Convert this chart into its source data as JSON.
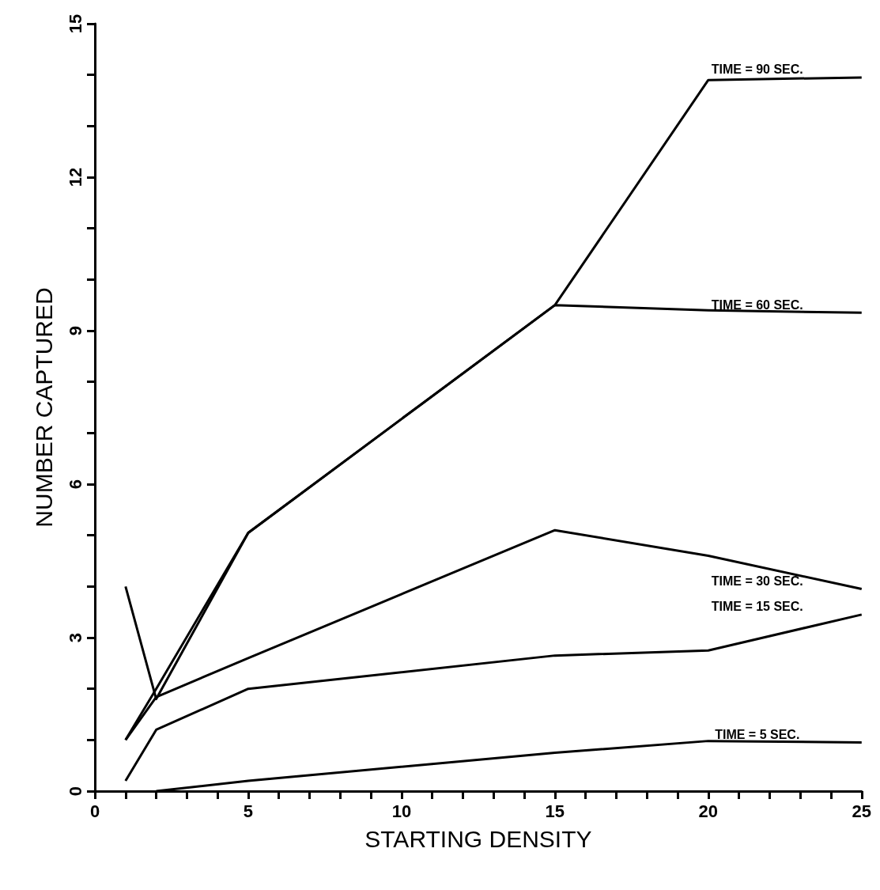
{
  "chart_data": {
    "type": "line",
    "xlabel": "STARTING DENSITY",
    "ylabel": "NUMBER CAPTURED",
    "x": [
      1,
      2,
      5,
      15,
      20,
      25
    ],
    "series": [
      {
        "name": "TIME = 90 SEC.",
        "color": "#000000",
        "values": [
          1.0,
          2.0,
          5.05,
          9.5,
          13.9,
          13.95
        ]
      },
      {
        "name": "TIME = 60 SEC.",
        "color": "#000000",
        "values": [
          4.0,
          1.8,
          5.05,
          9.5,
          9.4,
          9.35
        ]
      },
      {
        "name": "TIME = 30 SEC.",
        "color": "#000000",
        "values": [
          1.0,
          1.84,
          2.6,
          5.1,
          4.6,
          3.95
        ]
      },
      {
        "name": "TIME = 15 SEC.",
        "color": "#000000",
        "values": [
          0.2,
          1.2,
          2.0,
          2.65,
          2.75,
          3.45
        ]
      },
      {
        "name": "TIME = 5 SEC.",
        "color": "#000000",
        "values": [
          null,
          0,
          0.2,
          0.75,
          0.98,
          0.95
        ]
      }
    ],
    "xlim": [
      0,
      25
    ],
    "xticks": [
      0,
      {
        "value": 1,
        "label": null
      },
      {
        "value": 2,
        "label": null
      },
      {
        "value": 3,
        "label": null
      },
      {
        "value": 4,
        "label": null
      },
      5,
      {
        "value": 6,
        "label": null
      },
      {
        "value": 7,
        "label": null
      },
      {
        "value": 8,
        "label": null
      },
      {
        "value": 9,
        "label": null
      },
      10,
      {
        "value": 11,
        "label": null
      },
      {
        "value": 12,
        "label": null
      },
      {
        "value": 13,
        "label": null
      },
      {
        "value": 14,
        "label": null
      },
      15,
      {
        "value": 16,
        "label": null
      },
      {
        "value": 17,
        "label": null
      },
      {
        "value": 18,
        "label": null
      },
      {
        "value": 19,
        "label": null
      },
      20,
      {
        "value": 21,
        "label": null
      },
      {
        "value": 22,
        "label": null
      },
      {
        "value": 23,
        "label": null
      },
      {
        "value": 24,
        "label": null
      },
      25
    ],
    "ylim": [
      0,
      15
    ],
    "yticks": [
      0,
      {
        "value": 1,
        "label": null
      },
      {
        "value": 2,
        "label": null
      },
      3,
      {
        "value": 4,
        "label": null
      },
      {
        "value": 5,
        "label": null
      },
      6,
      {
        "value": 7,
        "label": null
      },
      {
        "value": 8,
        "label": null
      },
      9,
      {
        "value": 10,
        "label": null
      },
      {
        "value": 11,
        "label": null
      },
      12,
      {
        "value": 13,
        "label": null
      },
      {
        "value": 14,
        "label": null
      },
      15
    ],
    "grid": false,
    "legend": false,
    "marker": "none",
    "line_style": "solid"
  }
}
